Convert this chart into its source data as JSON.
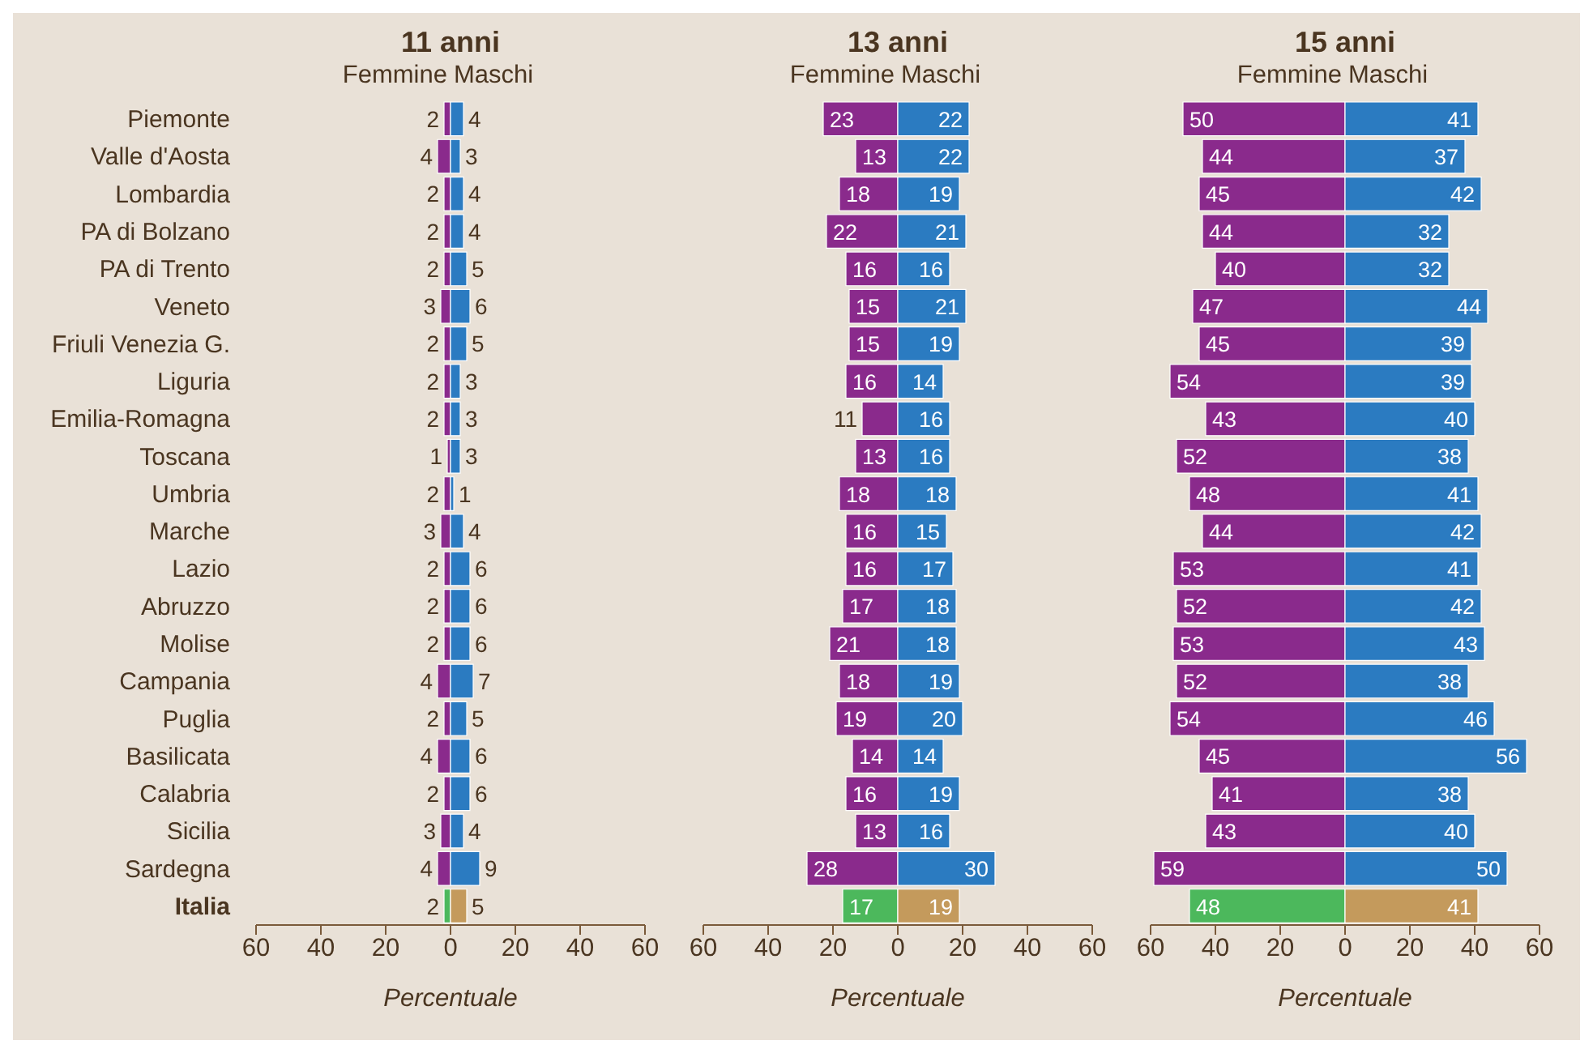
{
  "chart_data": [
    {
      "type": "bar",
      "orientation": "horizontal",
      "title": "11 anni",
      "xlabel": "Percentuale",
      "legend": "top",
      "data_labels": true,
      "categories": [
        "Piemonte",
        "Valle d'Aosta",
        "Lombardia",
        "PA di Bolzano",
        "PA di Trento",
        "Veneto",
        "Friuli Venezia G.",
        "Liguria",
        "Emilia-Romagna",
        "Toscana",
        "Umbria",
        "Marche",
        "Lazio",
        "Abruzzo",
        "Molise",
        "Campania",
        "Puglia",
        "Basilicata",
        "Calabria",
        "Sicilia",
        "Sardegna",
        "Italia"
      ],
      "series": [
        {
          "name": "Femmine",
          "colors": [
            "#8a2a8c",
            "#8a2a8c",
            "#8a2a8c",
            "#8a2a8c",
            "#8a2a8c",
            "#8a2a8c",
            "#8a2a8c",
            "#8a2a8c",
            "#8a2a8c",
            "#8a2a8c",
            "#8a2a8c",
            "#8a2a8c",
            "#8a2a8c",
            "#8a2a8c",
            "#8a2a8c",
            "#8a2a8c",
            "#8a2a8c",
            "#8a2a8c",
            "#8a2a8c",
            "#8a2a8c",
            "#8a2a8c",
            "#4cb85c"
          ],
          "values": [
            2,
            4,
            2,
            2,
            2,
            3,
            2,
            2,
            2,
            1,
            2,
            3,
            2,
            2,
            2,
            4,
            2,
            4,
            2,
            3,
            4,
            2
          ],
          "base": [
            -2,
            -4,
            -2,
            -2,
            -2,
            -3,
            -2,
            -2,
            -2,
            -1,
            -2,
            -3,
            -2,
            -2,
            -2,
            -4,
            -2,
            -4,
            -2,
            -3,
            -4,
            -2
          ]
        },
        {
          "name": "Maschi",
          "colors": [
            "#2b7bc1",
            "#2b7bc1",
            "#2b7bc1",
            "#2b7bc1",
            "#2b7bc1",
            "#2b7bc1",
            "#2b7bc1",
            "#2b7bc1",
            "#2b7bc1",
            "#2b7bc1",
            "#2b7bc1",
            "#2b7bc1",
            "#2b7bc1",
            "#2b7bc1",
            "#2b7bc1",
            "#2b7bc1",
            "#2b7bc1",
            "#2b7bc1",
            "#2b7bc1",
            "#2b7bc1",
            "#2b7bc1",
            "#c49a5c"
          ],
          "values": [
            4,
            3,
            4,
            4,
            5,
            6,
            5,
            3,
            3,
            3,
            1,
            4,
            6,
            6,
            6,
            7,
            5,
            6,
            6,
            4,
            9,
            5
          ],
          "base": [
            0,
            0,
            0,
            0,
            0,
            0,
            0,
            0,
            0,
            0,
            0,
            0,
            0,
            0,
            0,
            0,
            0,
            0,
            0,
            0,
            0,
            0
          ]
        }
      ],
      "xlim": [
        -60,
        60
      ],
      "xticks": [
        {
          "value": -60,
          "label": "60"
        },
        {
          "value": -40,
          "label": "40"
        },
        {
          "value": -20,
          "label": "20"
        },
        0,
        20,
        40,
        60
      ]
    },
    {
      "type": "bar",
      "orientation": "horizontal",
      "title": "13 anni",
      "xlabel": "Percentuale",
      "legend": "top",
      "tick_labels": "x",
      "data_labels": true,
      "categories": [
        null,
        null,
        null,
        null,
        null,
        null,
        null,
        null,
        null,
        null,
        null,
        null,
        null,
        null,
        null,
        null,
        null,
        null,
        null,
        null,
        null,
        null
      ],
      "series": [
        {
          "name": "Femmine",
          "colors": [
            "#8a2a8c",
            "#8a2a8c",
            "#8a2a8c",
            "#8a2a8c",
            "#8a2a8c",
            "#8a2a8c",
            "#8a2a8c",
            "#8a2a8c",
            "#8a2a8c",
            "#8a2a8c",
            "#8a2a8c",
            "#8a2a8c",
            "#8a2a8c",
            "#8a2a8c",
            "#8a2a8c",
            "#8a2a8c",
            "#8a2a8c",
            "#8a2a8c",
            "#8a2a8c",
            "#8a2a8c",
            "#8a2a8c",
            "#4cb85c"
          ],
          "values": [
            23,
            13,
            18,
            22,
            16,
            15,
            15,
            16,
            11,
            13,
            18,
            16,
            16,
            17,
            21,
            18,
            19,
            14,
            16,
            13,
            28,
            17
          ],
          "base": [
            -23,
            -13,
            -18,
            -22,
            -16,
            -15,
            -15,
            -16,
            -11,
            -13,
            -18,
            -16,
            -16,
            -17,
            -21,
            -18,
            -19,
            -14,
            -16,
            -13,
            -28,
            -17
          ]
        },
        {
          "name": "Maschi",
          "colors": [
            "#2b7bc1",
            "#2b7bc1",
            "#2b7bc1",
            "#2b7bc1",
            "#2b7bc1",
            "#2b7bc1",
            "#2b7bc1",
            "#2b7bc1",
            "#2b7bc1",
            "#2b7bc1",
            "#2b7bc1",
            "#2b7bc1",
            "#2b7bc1",
            "#2b7bc1",
            "#2b7bc1",
            "#2b7bc1",
            "#2b7bc1",
            "#2b7bc1",
            "#2b7bc1",
            "#2b7bc1",
            "#2b7bc1",
            "#c49a5c"
          ],
          "values": [
            22,
            22,
            19,
            21,
            16,
            21,
            19,
            14,
            16,
            16,
            18,
            15,
            17,
            18,
            18,
            19,
            20,
            14,
            19,
            16,
            30,
            19
          ],
          "base": [
            0,
            0,
            0,
            0,
            0,
            0,
            0,
            0,
            0,
            0,
            0,
            0,
            0,
            0,
            0,
            0,
            0,
            0,
            0,
            0,
            0,
            0
          ]
        }
      ],
      "xlim": [
        -60,
        60
      ],
      "xticks": [
        {
          "value": -60,
          "label": "60"
        },
        {
          "value": -40,
          "label": "40"
        },
        {
          "value": -20,
          "label": "20"
        },
        0,
        20,
        40,
        60
      ]
    },
    {
      "type": "bar",
      "orientation": "horizontal",
      "title": "15 anni",
      "xlabel": "Percentuale",
      "legend": "top",
      "tick_labels": "x",
      "data_labels": true,
      "categories": [
        null,
        null,
        null,
        null,
        null,
        null,
        null,
        null,
        null,
        null,
        null,
        null,
        null,
        null,
        null,
        null,
        null,
        null,
        null,
        null,
        null,
        null
      ],
      "series": [
        {
          "name": "Femmine",
          "colors": [
            "#8a2a8c",
            "#8a2a8c",
            "#8a2a8c",
            "#8a2a8c",
            "#8a2a8c",
            "#8a2a8c",
            "#8a2a8c",
            "#8a2a8c",
            "#8a2a8c",
            "#8a2a8c",
            "#8a2a8c",
            "#8a2a8c",
            "#8a2a8c",
            "#8a2a8c",
            "#8a2a8c",
            "#8a2a8c",
            "#8a2a8c",
            "#8a2a8c",
            "#8a2a8c",
            "#8a2a8c",
            "#8a2a8c",
            "#4cb85c"
          ],
          "values": [
            50,
            44,
            45,
            44,
            40,
            47,
            45,
            54,
            43,
            52,
            48,
            44,
            53,
            52,
            53,
            52,
            54,
            45,
            41,
            43,
            59,
            48
          ],
          "base": [
            -50,
            -44,
            -45,
            -44,
            -40,
            -47,
            -45,
            -54,
            -43,
            -52,
            -48,
            -44,
            -53,
            -52,
            -53,
            -52,
            -54,
            -45,
            -41,
            -43,
            -59,
            -48
          ]
        },
        {
          "name": "Maschi",
          "colors": [
            "#2b7bc1",
            "#2b7bc1",
            "#2b7bc1",
            "#2b7bc1",
            "#2b7bc1",
            "#2b7bc1",
            "#2b7bc1",
            "#2b7bc1",
            "#2b7bc1",
            "#2b7bc1",
            "#2b7bc1",
            "#2b7bc1",
            "#2b7bc1",
            "#2b7bc1",
            "#2b7bc1",
            "#2b7bc1",
            "#2b7bc1",
            "#2b7bc1",
            "#2b7bc1",
            "#2b7bc1",
            "#2b7bc1",
            "#c49a5c"
          ],
          "values": [
            41,
            37,
            42,
            32,
            32,
            44,
            39,
            39,
            40,
            38,
            41,
            42,
            41,
            42,
            43,
            38,
            46,
            56,
            38,
            40,
            50,
            41
          ],
          "base": [
            0,
            0,
            0,
            0,
            0,
            0,
            0,
            0,
            0,
            0,
            0,
            0,
            0,
            0,
            0,
            0,
            0,
            0,
            0,
            0,
            0,
            0
          ]
        }
      ],
      "xlim": [
        -60,
        60
      ],
      "xticks": [
        {
          "value": -60,
          "label": "60"
        },
        {
          "value": -40,
          "label": "40"
        },
        {
          "value": -20,
          "label": "20"
        },
        0,
        20,
        40,
        60
      ]
    }
  ]
}
